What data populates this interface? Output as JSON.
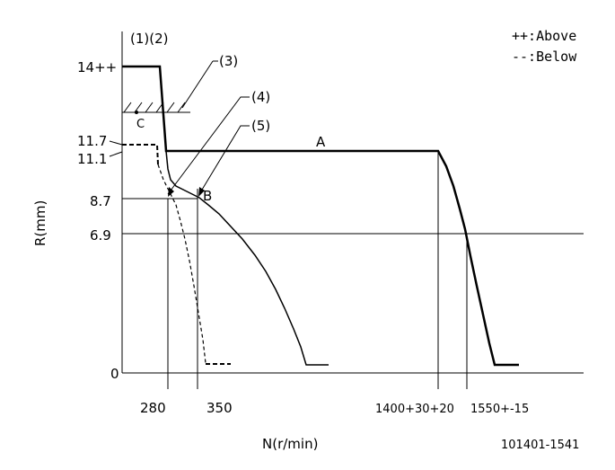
{
  "legend": {
    "above": "++:Above",
    "below": "--:Below"
  },
  "axis_labels": {
    "y": "R(mm)",
    "x": "N(r/min)"
  },
  "y_ticks": {
    "t14": "14++",
    "t117": "11.7",
    "t111": "11.1",
    "t87": "8.7",
    "t69": "6.9",
    "t0": "0"
  },
  "x_ticks": {
    "t280": "280",
    "t350": "350",
    "t1400": "1400+30+20",
    "t1550": "1550+-15"
  },
  "callouts": {
    "c12": "(1)(2)",
    "c3": "(3)",
    "c4": "(4)",
    "c5": "(5)"
  },
  "points": {
    "a": "A",
    "b": "B",
    "c": "C"
  },
  "drawing_no": "101401-1541",
  "colors": {
    "line": "#000000",
    "background": "#ffffff"
  }
}
